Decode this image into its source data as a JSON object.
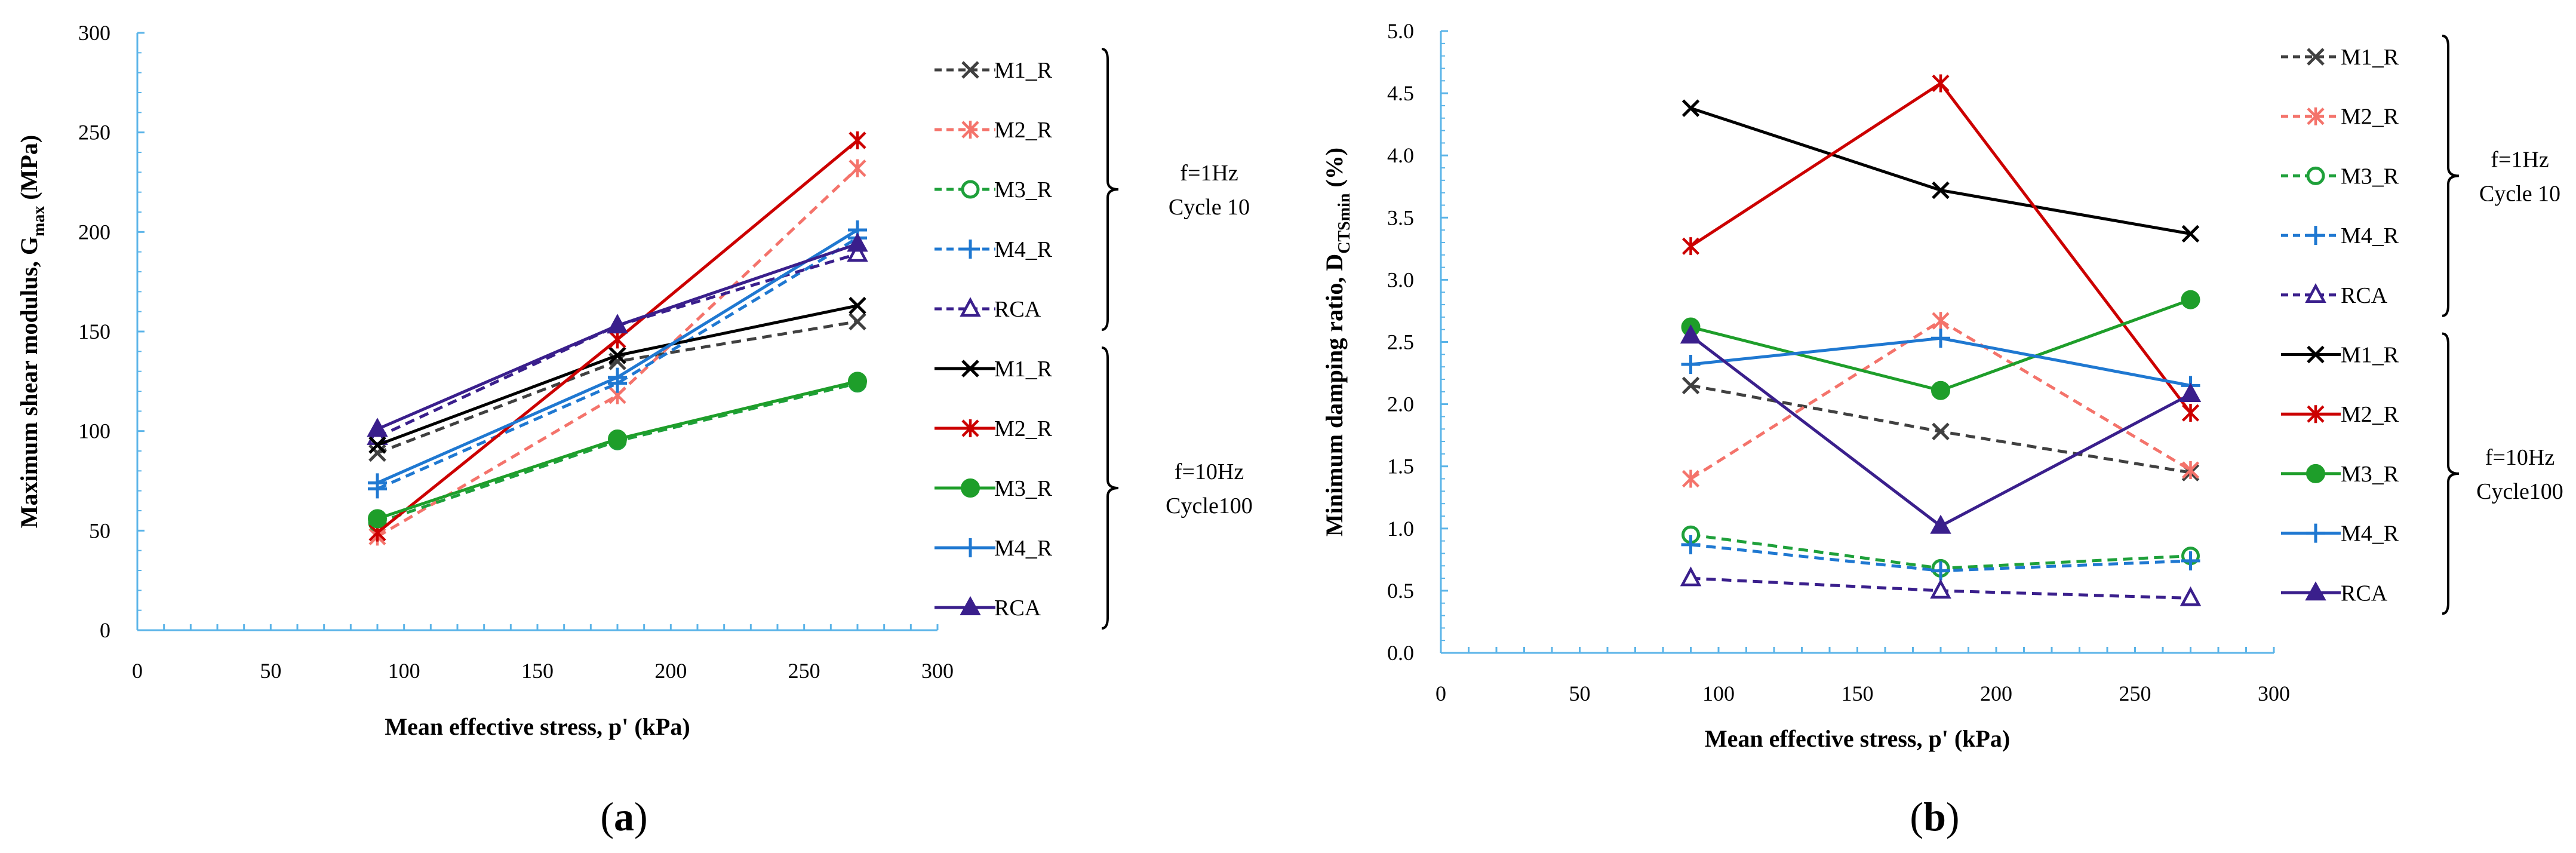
{
  "chart_data": [
    {
      "type": "line",
      "panel_label": "(a)",
      "panel_letter": "a",
      "xlabel": "Mean effective stress, p' (kPa)",
      "ylabel_main": "Maximum shear modulus, G",
      "ylabel_sub": "max",
      "ylabel_unit": " (MPa)",
      "xlim": [
        0,
        300
      ],
      "ylim": [
        0,
        300
      ],
      "xticks": [
        0,
        50,
        100,
        150,
        200,
        250,
        300
      ],
      "yticks": [
        0,
        50,
        100,
        150,
        200,
        250,
        300
      ],
      "x": [
        90,
        180,
        270
      ],
      "series": [
        {
          "name": "M1_R",
          "group": "f=1Hz Cycle 10",
          "color": "#404040",
          "dashed": true,
          "marker": "x",
          "values": [
            89,
            135,
            155
          ]
        },
        {
          "name": "M2_R",
          "group": "f=1Hz Cycle 10",
          "color": "#f4736b",
          "dashed": true,
          "marker": "star",
          "values": [
            47,
            118,
            232
          ]
        },
        {
          "name": "M3_R",
          "group": "f=1Hz Cycle 10",
          "color": "#1ea03a",
          "dashed": true,
          "marker": "open-circle",
          "values": [
            54,
            95,
            124
          ]
        },
        {
          "name": "M4_R",
          "group": "f=1Hz Cycle 10",
          "color": "#1f78d1",
          "dashed": true,
          "marker": "plus",
          "values": [
            71,
            124,
            197
          ]
        },
        {
          "name": "RCA",
          "group": "f=1Hz Cycle 10",
          "color": "#3a1f8c",
          "dashed": true,
          "marker": "open-triangle",
          "values": [
            97,
            153,
            189
          ]
        },
        {
          "name": "M1_R",
          "group": "f=10Hz Cycle100",
          "color": "#000000",
          "dashed": false,
          "marker": "x",
          "values": [
            93,
            138,
            163
          ]
        },
        {
          "name": "M2_R",
          "group": "f=10Hz Cycle100",
          "color": "#cc0000",
          "dashed": false,
          "marker": "star",
          "values": [
            49,
            146,
            246
          ]
        },
        {
          "name": "M3_R",
          "group": "f=10Hz Cycle100",
          "color": "#1e9e2a",
          "dashed": false,
          "marker": "filled-circle",
          "values": [
            56,
            96,
            125
          ]
        },
        {
          "name": "M4_R",
          "group": "f=10Hz Cycle100",
          "color": "#1f78d1",
          "dashed": false,
          "marker": "plus",
          "values": [
            74,
            127,
            201
          ]
        },
        {
          "name": "RCA",
          "group": "f=10Hz Cycle100",
          "color": "#3a1f8c",
          "dashed": false,
          "marker": "filled-triangle",
          "values": [
            101,
            153,
            194
          ]
        }
      ],
      "groups": [
        {
          "line1": "f=1Hz",
          "line2": "Cycle 10"
        },
        {
          "line1": "f=10Hz",
          "line2": "Cycle100"
        }
      ]
    },
    {
      "type": "line",
      "panel_label": "(b)",
      "panel_letter": "b",
      "xlabel": "Mean effective stress, p' (kPa)",
      "ylabel_main": "Minimum damping ratio, D",
      "ylabel_sub": "CTSmin",
      "ylabel_unit": " (%)",
      "xlim": [
        0,
        300
      ],
      "ylim": [
        0,
        5
      ],
      "xticks": [
        0,
        50,
        100,
        150,
        200,
        250,
        300
      ],
      "yticks": [
        "0.0",
        "0.5",
        "1.0",
        "1.5",
        "2.0",
        "2.5",
        "3.0",
        "3.5",
        "4.0",
        "4.5",
        "5.0"
      ],
      "x": [
        90,
        180,
        270
      ],
      "series": [
        {
          "name": "M1_R",
          "group": "f=1Hz Cycle 10",
          "color": "#404040",
          "dashed": true,
          "marker": "x",
          "values": [
            2.15,
            1.78,
            1.45
          ]
        },
        {
          "name": "M2_R",
          "group": "f=1Hz Cycle 10",
          "color": "#f4736b",
          "dashed": true,
          "marker": "star",
          "values": [
            1.4,
            2.67,
            1.47
          ]
        },
        {
          "name": "M3_R",
          "group": "f=1Hz Cycle 10",
          "color": "#1ea03a",
          "dashed": true,
          "marker": "open-circle",
          "values": [
            0.95,
            0.68,
            0.78
          ]
        },
        {
          "name": "M4_R",
          "group": "f=1Hz Cycle 10",
          "color": "#1f78d1",
          "dashed": true,
          "marker": "plus",
          "values": [
            0.87,
            0.66,
            0.74
          ]
        },
        {
          "name": "RCA",
          "group": "f=1Hz Cycle 10",
          "color": "#3a1f8c",
          "dashed": true,
          "marker": "open-triangle",
          "values": [
            0.6,
            0.5,
            0.44
          ]
        },
        {
          "name": "M1_R",
          "group": "f=10Hz Cycle100",
          "color": "#000000",
          "dashed": false,
          "marker": "x",
          "values": [
            4.38,
            3.72,
            3.37
          ]
        },
        {
          "name": "M2_R",
          "group": "f=10Hz Cycle100",
          "color": "#cc0000",
          "dashed": false,
          "marker": "star",
          "values": [
            3.27,
            4.58,
            1.93
          ]
        },
        {
          "name": "M3_R",
          "group": "f=10Hz Cycle100",
          "color": "#1e9e2a",
          "dashed": false,
          "marker": "filled-circle",
          "values": [
            2.62,
            2.11,
            2.84
          ]
        },
        {
          "name": "M4_R",
          "group": "f=10Hz Cycle100",
          "color": "#1f78d1",
          "dashed": false,
          "marker": "plus",
          "values": [
            2.32,
            2.53,
            2.15
          ]
        },
        {
          "name": "RCA",
          "group": "f=10Hz Cycle100",
          "color": "#3a1f8c",
          "dashed": false,
          "marker": "filled-triangle",
          "values": [
            2.55,
            1.02,
            2.08
          ]
        }
      ],
      "groups": [
        {
          "line1": "f=1Hz",
          "line2": "Cycle 10"
        },
        {
          "line1": "f=10Hz",
          "line2": "Cycle100"
        }
      ]
    }
  ]
}
